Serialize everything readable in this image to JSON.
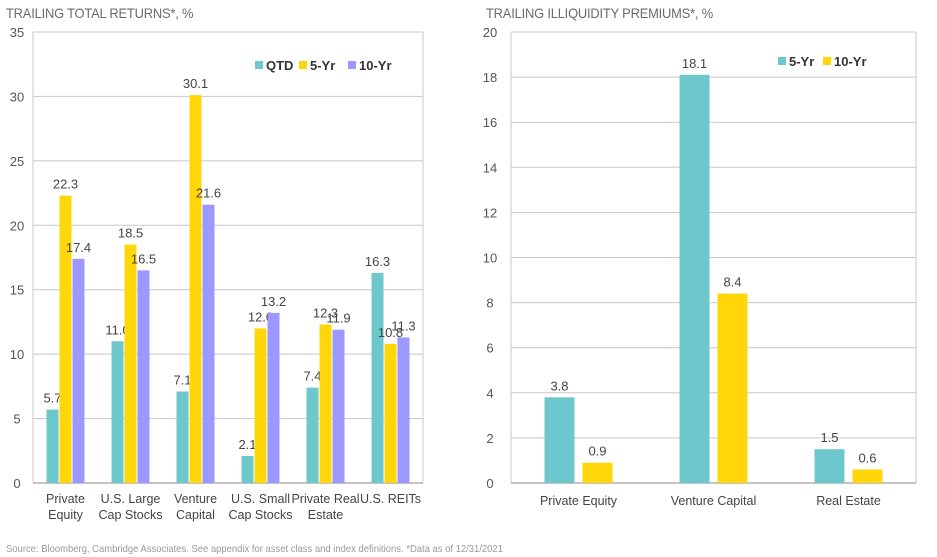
{
  "chart_data": [
    {
      "type": "bar",
      "title": "TRAILING TOTAL RETURNS*, %",
      "xlabel": "",
      "ylabel": "",
      "ylim": [
        0,
        35
      ],
      "yticks": [
        0,
        5,
        10,
        15,
        20,
        25,
        30,
        35
      ],
      "grid": true,
      "legend": "top-right",
      "categories": [
        [
          "Private",
          "Equity"
        ],
        [
          "U.S. Large",
          "Cap Stocks"
        ],
        [
          "Venture",
          "Capital"
        ],
        [
          "U.S. Small",
          "Cap Stocks"
        ],
        [
          "Private Real",
          "Estate"
        ],
        [
          "U.S. REITs"
        ]
      ],
      "series": [
        {
          "name": "QTD",
          "color": "#6cc8cc",
          "values": [
            5.7,
            11.0,
            7.1,
            2.1,
            7.4,
            16.3
          ],
          "labels": [
            "5.7",
            "11.0",
            "7.1",
            "2.1",
            "7.4",
            "16.3"
          ]
        },
        {
          "name": "5-Yr",
          "color": "#ffd60a",
          "values": [
            22.3,
            18.5,
            30.1,
            12.0,
            12.3,
            10.8
          ],
          "labels": [
            "22.3",
            "18.5",
            "30.1",
            "12.0",
            "12.3",
            "10.8"
          ]
        },
        {
          "name": "10-Yr",
          "color": "#9b99ff",
          "values": [
            17.4,
            16.5,
            21.6,
            13.2,
            11.9,
            11.3
          ],
          "labels": [
            "17.4",
            "16.5",
            "21.6",
            "13.2",
            "11.9",
            "11.3"
          ]
        }
      ]
    },
    {
      "type": "bar",
      "title": "TRAILING ILLIQUIDITY PREMIUMS*, %",
      "xlabel": "",
      "ylabel": "",
      "ylim": [
        0,
        20
      ],
      "yticks": [
        0,
        2,
        4,
        6,
        8,
        10,
        12,
        14,
        16,
        18,
        20
      ],
      "grid": true,
      "legend": "top-right",
      "categories": [
        [
          "Private Equity"
        ],
        [
          "Venture Capital"
        ],
        [
          "Real Estate"
        ]
      ],
      "series": [
        {
          "name": "5-Yr",
          "color": "#6cc8cc",
          "values": [
            3.8,
            18.1,
            1.5
          ],
          "labels": [
            "3.8",
            "18.1",
            "1.5"
          ]
        },
        {
          "name": "10-Yr",
          "color": "#ffd60a",
          "values": [
            0.9,
            8.4,
            0.6
          ],
          "labels": [
            "0.9",
            "8.4",
            "0.6"
          ]
        }
      ]
    }
  ],
  "titles": {
    "left": "TRAILING TOTAL RETURNS*, %",
    "right": "TRAILING ILLIQUIDITY PREMIUMS*, %"
  },
  "footnote": "Source: Bloomberg, Cambridge Associates. See appendix for asset class and index definitions. *Data as of 12/31/2021"
}
